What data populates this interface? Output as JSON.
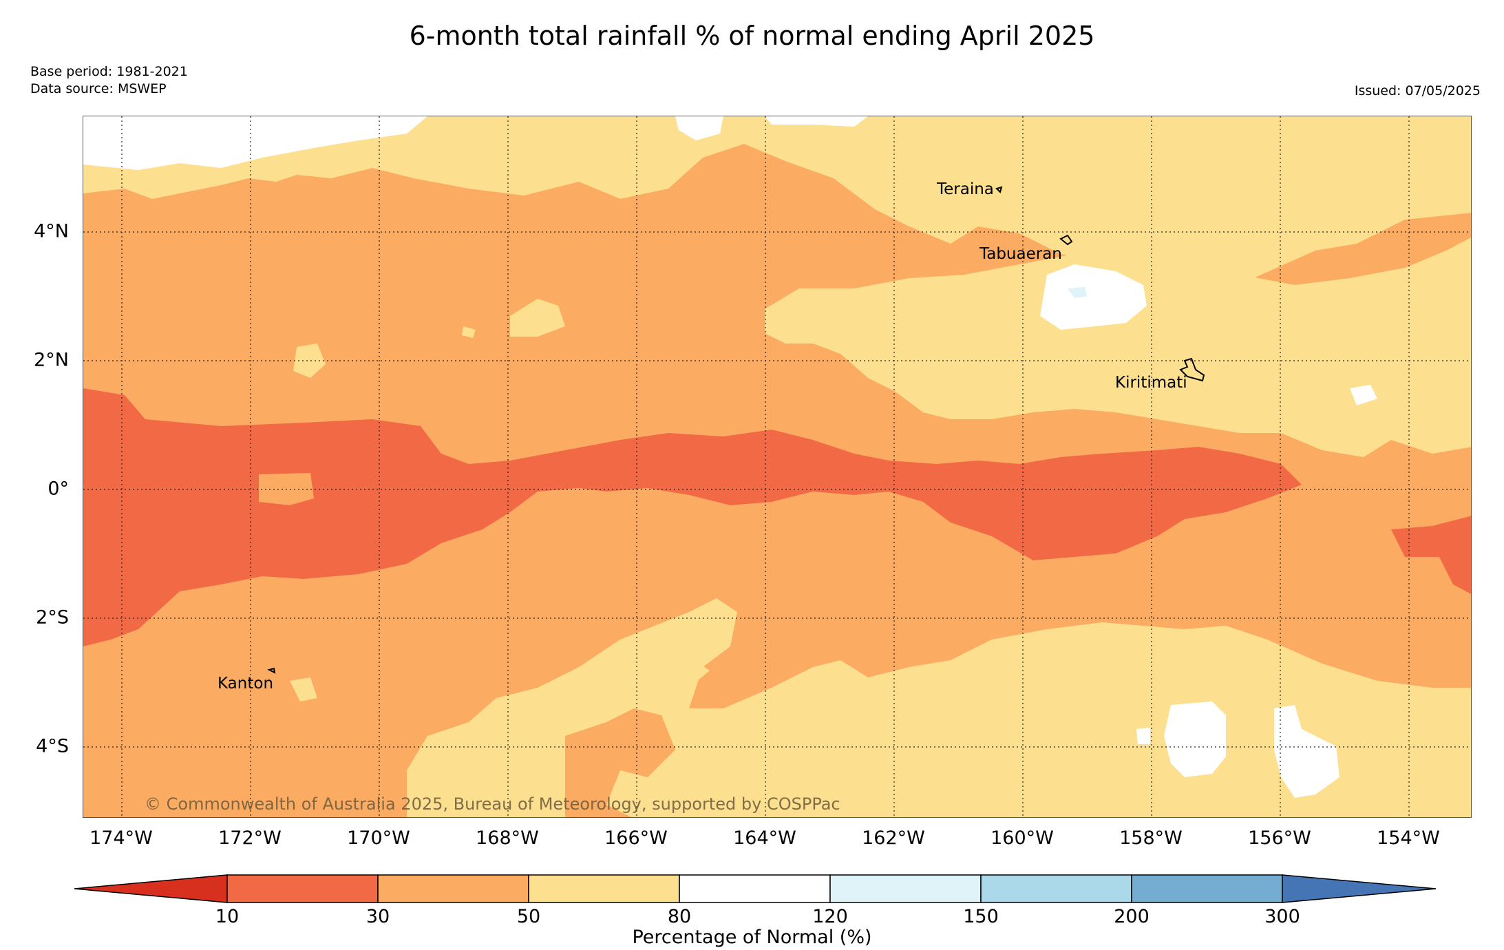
{
  "title": "6-month total rainfall % of normal ending April 2025",
  "base_period": "Base period: 1981-2021",
  "data_source": "Data source: MSWEP",
  "issued": "Issued: 07/05/2025",
  "copyright": "© Commonwealth of Australia 2025, Bureau of Meteorology, supported by COSPPac",
  "lat_labels": [
    "4°N",
    "2°N",
    "0°",
    "2°S",
    "4°S"
  ],
  "lon_labels": [
    "174°W",
    "172°W",
    "170°W",
    "168°W",
    "166°W",
    "164°W",
    "162°W",
    "160°W",
    "158°W",
    "156°W",
    "154°W"
  ],
  "places": {
    "teraina": "Teraina",
    "tabuaeran": "Tabuaeran",
    "kiritimati": "Kiritimati",
    "kanton": "Kanton"
  },
  "legend": {
    "title": "Percentage of Normal (%)",
    "ticks": [
      "10",
      "30",
      "50",
      "80",
      "120",
      "150",
      "200",
      "300"
    ],
    "colors": [
      "#d7301f",
      "#f26a45",
      "#fbab62",
      "#fde08f",
      "#ffffff",
      "#e0f3f8",
      "#abd9e9",
      "#74add1",
      "#4575b4"
    ]
  }
}
